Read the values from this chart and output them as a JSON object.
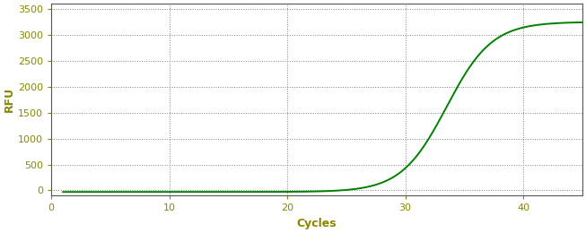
{
  "title": "",
  "xlabel": "Cycles",
  "ylabel": "RFU",
  "xlim": [
    0,
    45
  ],
  "ylim": [
    -100,
    3600
  ],
  "xticks": [
    0,
    10,
    20,
    30,
    40
  ],
  "yticks": [
    0,
    500,
    1000,
    1500,
    2000,
    2500,
    3000,
    3500
  ],
  "line_color": "#008000",
  "line_width": 1.4,
  "background_color": "#ffffff",
  "figure_background": "#ffffff",
  "grid_color": "#808080",
  "sigmoid_L": 3280,
  "sigmoid_k": 0.52,
  "sigmoid_x0": 33.5,
  "x_start": 1,
  "x_end": 45,
  "tick_label_color": "#888800",
  "axis_label_color": "#888800",
  "spine_color": "#555555",
  "xlabel_fontsize": 9,
  "ylabel_fontsize": 9,
  "tick_fontsize": 8
}
